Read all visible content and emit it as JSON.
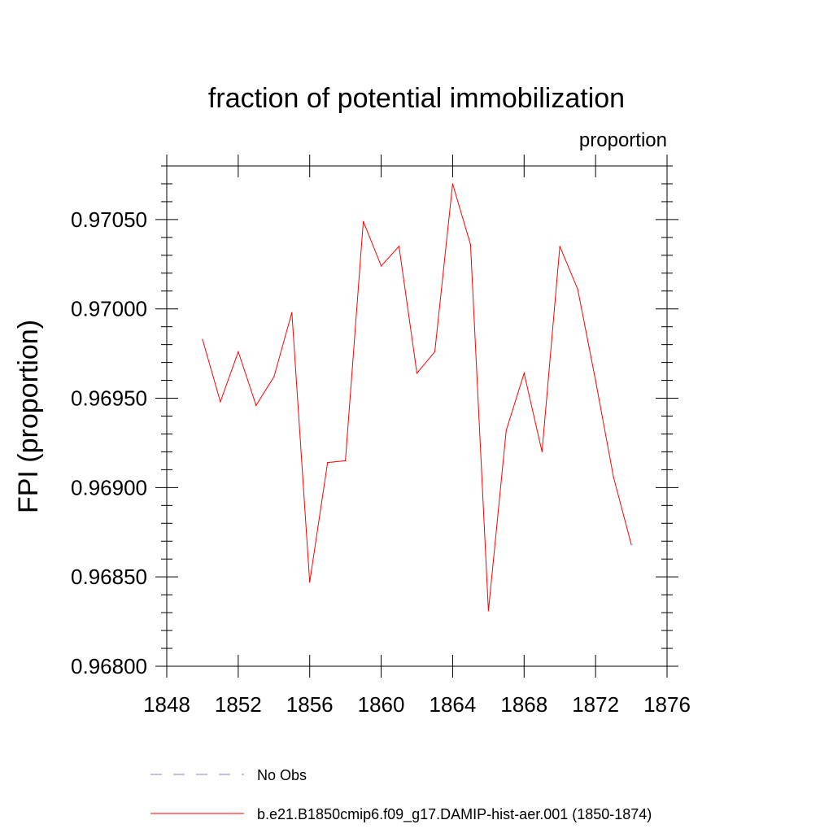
{
  "chart_data": {
    "type": "line",
    "title": "fraction of potential immobilization",
    "units_label": "proportion",
    "ylabel": "FPI  (proportion)",
    "xlabel": "",
    "xlim": [
      1848,
      1876
    ],
    "ylim": [
      0.968,
      0.9708
    ],
    "x_ticks": [
      1848,
      1852,
      1856,
      1860,
      1864,
      1868,
      1872,
      1876
    ],
    "y_ticks": [
      0.968,
      0.9685,
      0.969,
      0.9695,
      0.97,
      0.9705
    ],
    "x_tick_labels": [
      "1848",
      "1852",
      "1856",
      "1860",
      "1864",
      "1868",
      "1872",
      "1876"
    ],
    "y_tick_labels": [
      "0.96800",
      "0.96850",
      "0.96900",
      "0.96950",
      "0.97000",
      "0.97050"
    ],
    "grid": false,
    "legend_position": "bottom",
    "series": [
      {
        "name": "b.e21.B1850cmip6.f09_g17.DAMIP-hist-aer.001 (1850-1874)",
        "color": "#ff0000",
        "style": "solid",
        "x": [
          1850,
          1851,
          1852,
          1853,
          1854,
          1855,
          1856,
          1857,
          1858,
          1859,
          1860,
          1861,
          1862,
          1863,
          1864,
          1865,
          1866,
          1867,
          1868,
          1869,
          1870,
          1871,
          1872,
          1873,
          1874
        ],
        "y": [
          0.96983,
          0.96948,
          0.96976,
          0.96946,
          0.96962,
          0.96998,
          0.96847,
          0.96914,
          0.96915,
          0.97049,
          0.97024,
          0.97035,
          0.96964,
          0.96976,
          0.9707,
          0.97036,
          0.96831,
          0.96932,
          0.96964,
          0.9692,
          0.97035,
          0.97011,
          0.9696,
          0.96906,
          0.96868
        ]
      }
    ],
    "legend": [
      {
        "label": "No Obs",
        "color": "#8080c0",
        "style": "dashed"
      },
      {
        "label": "b.e21.B1850cmip6.f09_g17.DAMIP-hist-aer.001 (1850-1874)",
        "color": "#ff0000",
        "style": "solid"
      }
    ]
  }
}
